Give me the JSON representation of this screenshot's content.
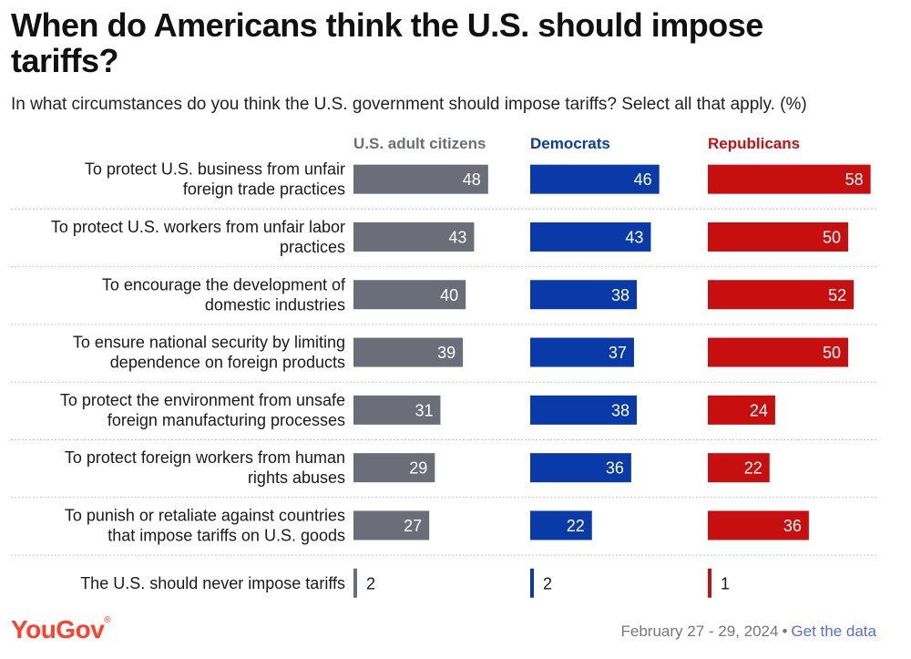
{
  "title": "When do Americans think the U.S. should impose tariffs?",
  "subtitle": "In what circumstances do you think the U.S. government should impose tariffs? Select all that apply. (%)",
  "colors": {
    "all": "#6b6e78",
    "dem": "#0a3aa8",
    "rep": "#c70f0f",
    "text": "#1a1a1a"
  },
  "chart_data": {
    "type": "bar",
    "orientation": "horizontal",
    "categories": [
      [
        "To protect U.S. business from unfair",
        "foreign trade practices"
      ],
      [
        "To protect U.S. workers from unfair labor",
        "practices"
      ],
      [
        "To encourage the development of",
        "domestic industries"
      ],
      [
        "To ensure national security by limiting",
        "dependence on foreign products"
      ],
      [
        "To protect the environment from unsafe",
        "foreign manufacturing processes"
      ],
      [
        "To protect foreign workers from human",
        "rights abuses"
      ],
      [
        "To punish or retaliate against countries",
        "that impose tariffs on U.S. goods"
      ],
      [
        "The U.S. should never impose tariffs"
      ]
    ],
    "series": [
      {
        "name": "U.S. adult citizens",
        "color": "#6b6e78",
        "values": [
          48,
          43,
          40,
          39,
          31,
          29,
          27,
          2
        ]
      },
      {
        "name": "Democrats",
        "color": "#0a3aa8",
        "values": [
          46,
          43,
          38,
          37,
          38,
          36,
          22,
          2
        ]
      },
      {
        "name": "Republicans",
        "color": "#c70f0f",
        "values": [
          58,
          50,
          52,
          50,
          24,
          22,
          36,
          1
        ]
      }
    ],
    "unit": "%"
  },
  "footer": {
    "logo": "YouGov",
    "date": "February 27 - 29, 2024",
    "separator": "•",
    "link": "Get the data"
  }
}
